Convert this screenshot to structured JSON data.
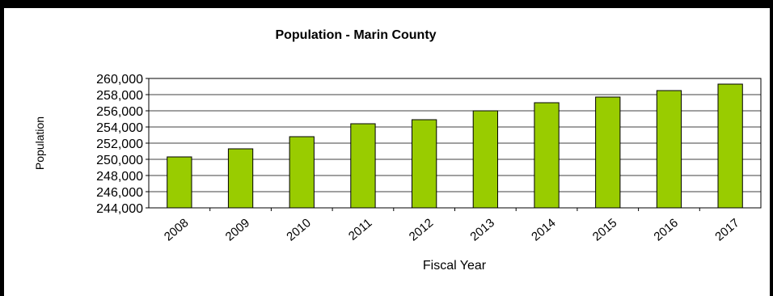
{
  "chart_data": {
    "type": "bar",
    "title": "Population - Marin County",
    "xlabel": "Fiscal Year",
    "ylabel": "Population",
    "categories": [
      "2008",
      "2009",
      "2010",
      "2011",
      "2012",
      "2013",
      "2014",
      "2015",
      "2016",
      "2017"
    ],
    "series": [
      {
        "values": [
          250300,
          251300,
          252800,
          254400,
          254900,
          256000,
          257000,
          257700,
          258500,
          259300
        ],
        "color": "#99cc00"
      }
    ],
    "ylim": [
      244000,
      260000
    ],
    "yticks": [
      "244,000",
      "246,000",
      "248,000",
      "250,000",
      "252,000",
      "254,000",
      "256,000",
      "258,000",
      "260,000"
    ],
    "grid": true,
    "legend": "none"
  }
}
